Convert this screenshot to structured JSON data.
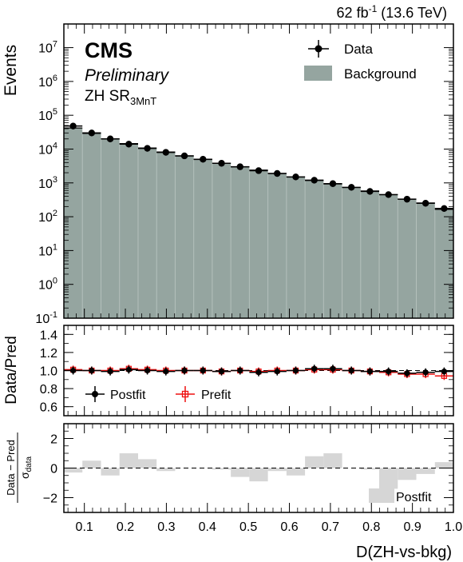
{
  "lumi_label": "62 fb",
  "lumi_sup": "-1",
  "lumi_energy": "(13.6 TeV)",
  "cms_label": "CMS",
  "preliminary_label": "Preliminary",
  "region_main": "ZH SR",
  "region_sub": "3MnT",
  "colors": {
    "background": "#95a5a0",
    "data": "#000000",
    "prefit": "#ee1111",
    "pull": "#d6d6d6"
  },
  "chart_data": [
    {
      "type": "bar",
      "panel": "main",
      "ylabel": "Events",
      "yscale": "log",
      "ylim": [
        0.1,
        50000000
      ],
      "yticks": [
        {
          "v": 0.1,
          "m": "10",
          "e": "-1"
        },
        {
          "v": 1,
          "m": "10",
          "e": "0"
        },
        {
          "v": 10,
          "m": "10",
          "e": "1"
        },
        {
          "v": 100,
          "m": "10",
          "e": "2"
        },
        {
          "v": 1000,
          "m": "10",
          "e": "3"
        },
        {
          "v": 10000,
          "m": "10",
          "e": "4"
        },
        {
          "v": 100000,
          "m": "10",
          "e": "5"
        },
        {
          "v": 1000000,
          "m": "10",
          "e": "6"
        },
        {
          "v": 10000000,
          "m": "10",
          "e": "7"
        }
      ],
      "xlim": [
        0.05,
        1.0
      ],
      "bin_edges": [
        0.05,
        0.0952,
        0.1405,
        0.1857,
        0.231,
        0.2762,
        0.3214,
        0.3667,
        0.4119,
        0.4571,
        0.5024,
        0.5476,
        0.5929,
        0.6381,
        0.6833,
        0.7286,
        0.7738,
        0.819,
        0.8643,
        0.9095,
        0.9548,
        1.0
      ],
      "legend": [
        "Data",
        "Background"
      ],
      "legend_position": "top-right",
      "series": [
        {
          "name": "Background",
          "values": [
            42000,
            29000,
            20000,
            14500,
            10800,
            8200,
            6300,
            4900,
            3800,
            3000,
            2400,
            1900,
            1500,
            1180,
            930,
            730,
            580,
            450,
            330,
            255,
            165
          ]
        },
        {
          "name": "Data",
          "values": [
            48000,
            30000,
            20000,
            14000,
            10500,
            8000,
            6300,
            5000,
            3800,
            3000,
            2300,
            1900,
            1500,
            1200,
            950,
            740,
            560,
            450,
            330,
            250,
            175
          ]
        }
      ]
    },
    {
      "type": "scatter",
      "panel": "ratio",
      "ylabel": "Data/Pred",
      "ylim": [
        0.5,
        1.5
      ],
      "yticks": [
        "0.6",
        "0.8",
        "1.0",
        "1.2",
        "1.4"
      ],
      "legend": [
        "Postfit",
        "Prefit"
      ],
      "legend_position": "bottom-left",
      "series": [
        {
          "name": "Postfit",
          "values": [
            1.0,
            1.0,
            0.99,
            1.01,
            1.0,
            0.99,
            1.0,
            1.0,
            0.99,
            1.0,
            0.98,
            0.99,
            1.0,
            1.02,
            1.02,
            1.0,
            0.99,
            0.99,
            0.97,
            0.98,
            0.99
          ]
        },
        {
          "name": "Prefit",
          "values": [
            1.01,
            1.0,
            1.0,
            1.02,
            1.01,
            1.0,
            1.0,
            1.0,
            0.99,
            1.0,
            0.99,
            1.0,
            1.0,
            1.01,
            1.01,
            1.0,
            0.99,
            0.98,
            0.96,
            0.96,
            0.94
          ]
        }
      ]
    },
    {
      "type": "bar",
      "panel": "pull",
      "ylabel_num": "Data − Pred",
      "ylabel_den": "σ",
      "ylabel_den_sub": "data",
      "ylim": [
        -3,
        3
      ],
      "yticks": [
        "−2",
        "0",
        "2"
      ],
      "legend": [
        "Postfit"
      ],
      "legend_position": "bottom-right",
      "series": [
        {
          "name": "Postfit",
          "values": [
            -0.3,
            0.5,
            -0.5,
            1.0,
            0.6,
            -0.2,
            0.0,
            0.0,
            -0.1,
            -0.6,
            -0.9,
            -0.2,
            -0.5,
            0.8,
            1.0,
            0.0,
            -0.1,
            -1.4,
            -0.8,
            -0.4,
            0.4
          ]
        }
      ],
      "xlabel": "D(ZH-vs-bkg)",
      "xticks": [
        "0.1",
        "0.2",
        "0.3",
        "0.4",
        "0.5",
        "0.6",
        "0.7",
        "0.8",
        "0.9",
        "1.0"
      ]
    }
  ]
}
